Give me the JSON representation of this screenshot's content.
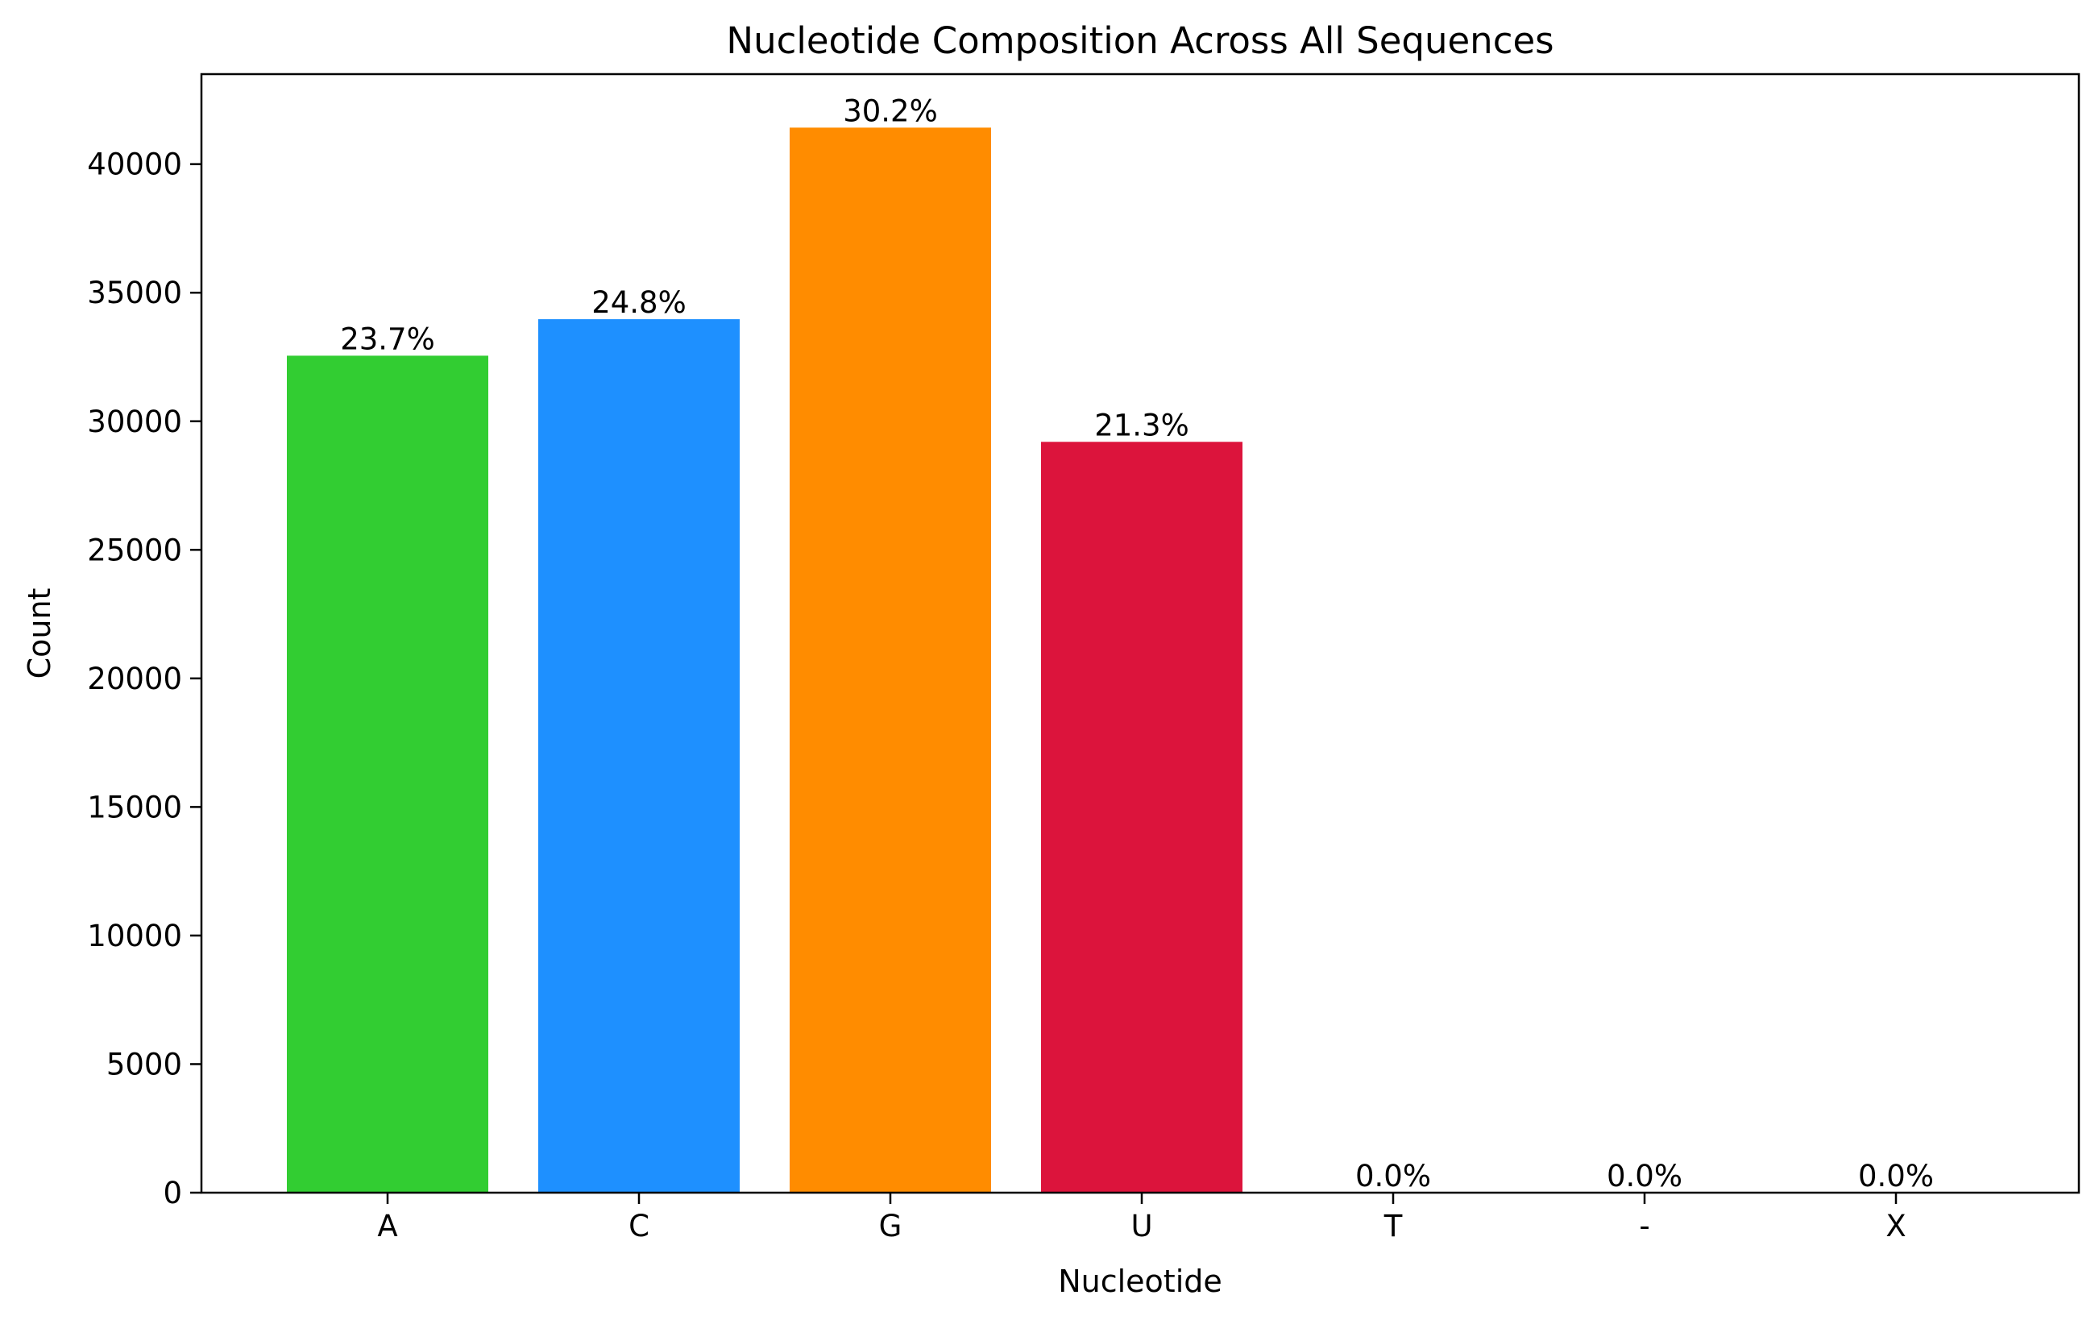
{
  "chart_data": {
    "type": "bar",
    "title": "Nucleotide Composition Across All Sequences",
    "xlabel": "Nucleotide",
    "ylabel": "Count",
    "categories": [
      "A",
      "C",
      "G",
      "U",
      "T",
      "-",
      "X"
    ],
    "values": [
      32550,
      33970,
      41420,
      29200,
      0,
      0,
      0
    ],
    "data_labels": [
      "23.7%",
      "24.8%",
      "30.2%",
      "21.3%",
      "0.0%",
      "0.0%",
      "0.0%"
    ],
    "colors": [
      "#32cd32",
      "#1e90ff",
      "#ff8c00",
      "#dc143c",
      "#808080",
      "#808080",
      "#808080"
    ],
    "ylim": [
      0,
      43500
    ],
    "yticks": [
      0,
      5000,
      10000,
      15000,
      20000,
      25000,
      30000,
      35000,
      40000
    ],
    "grid": false,
    "legend": false
  }
}
